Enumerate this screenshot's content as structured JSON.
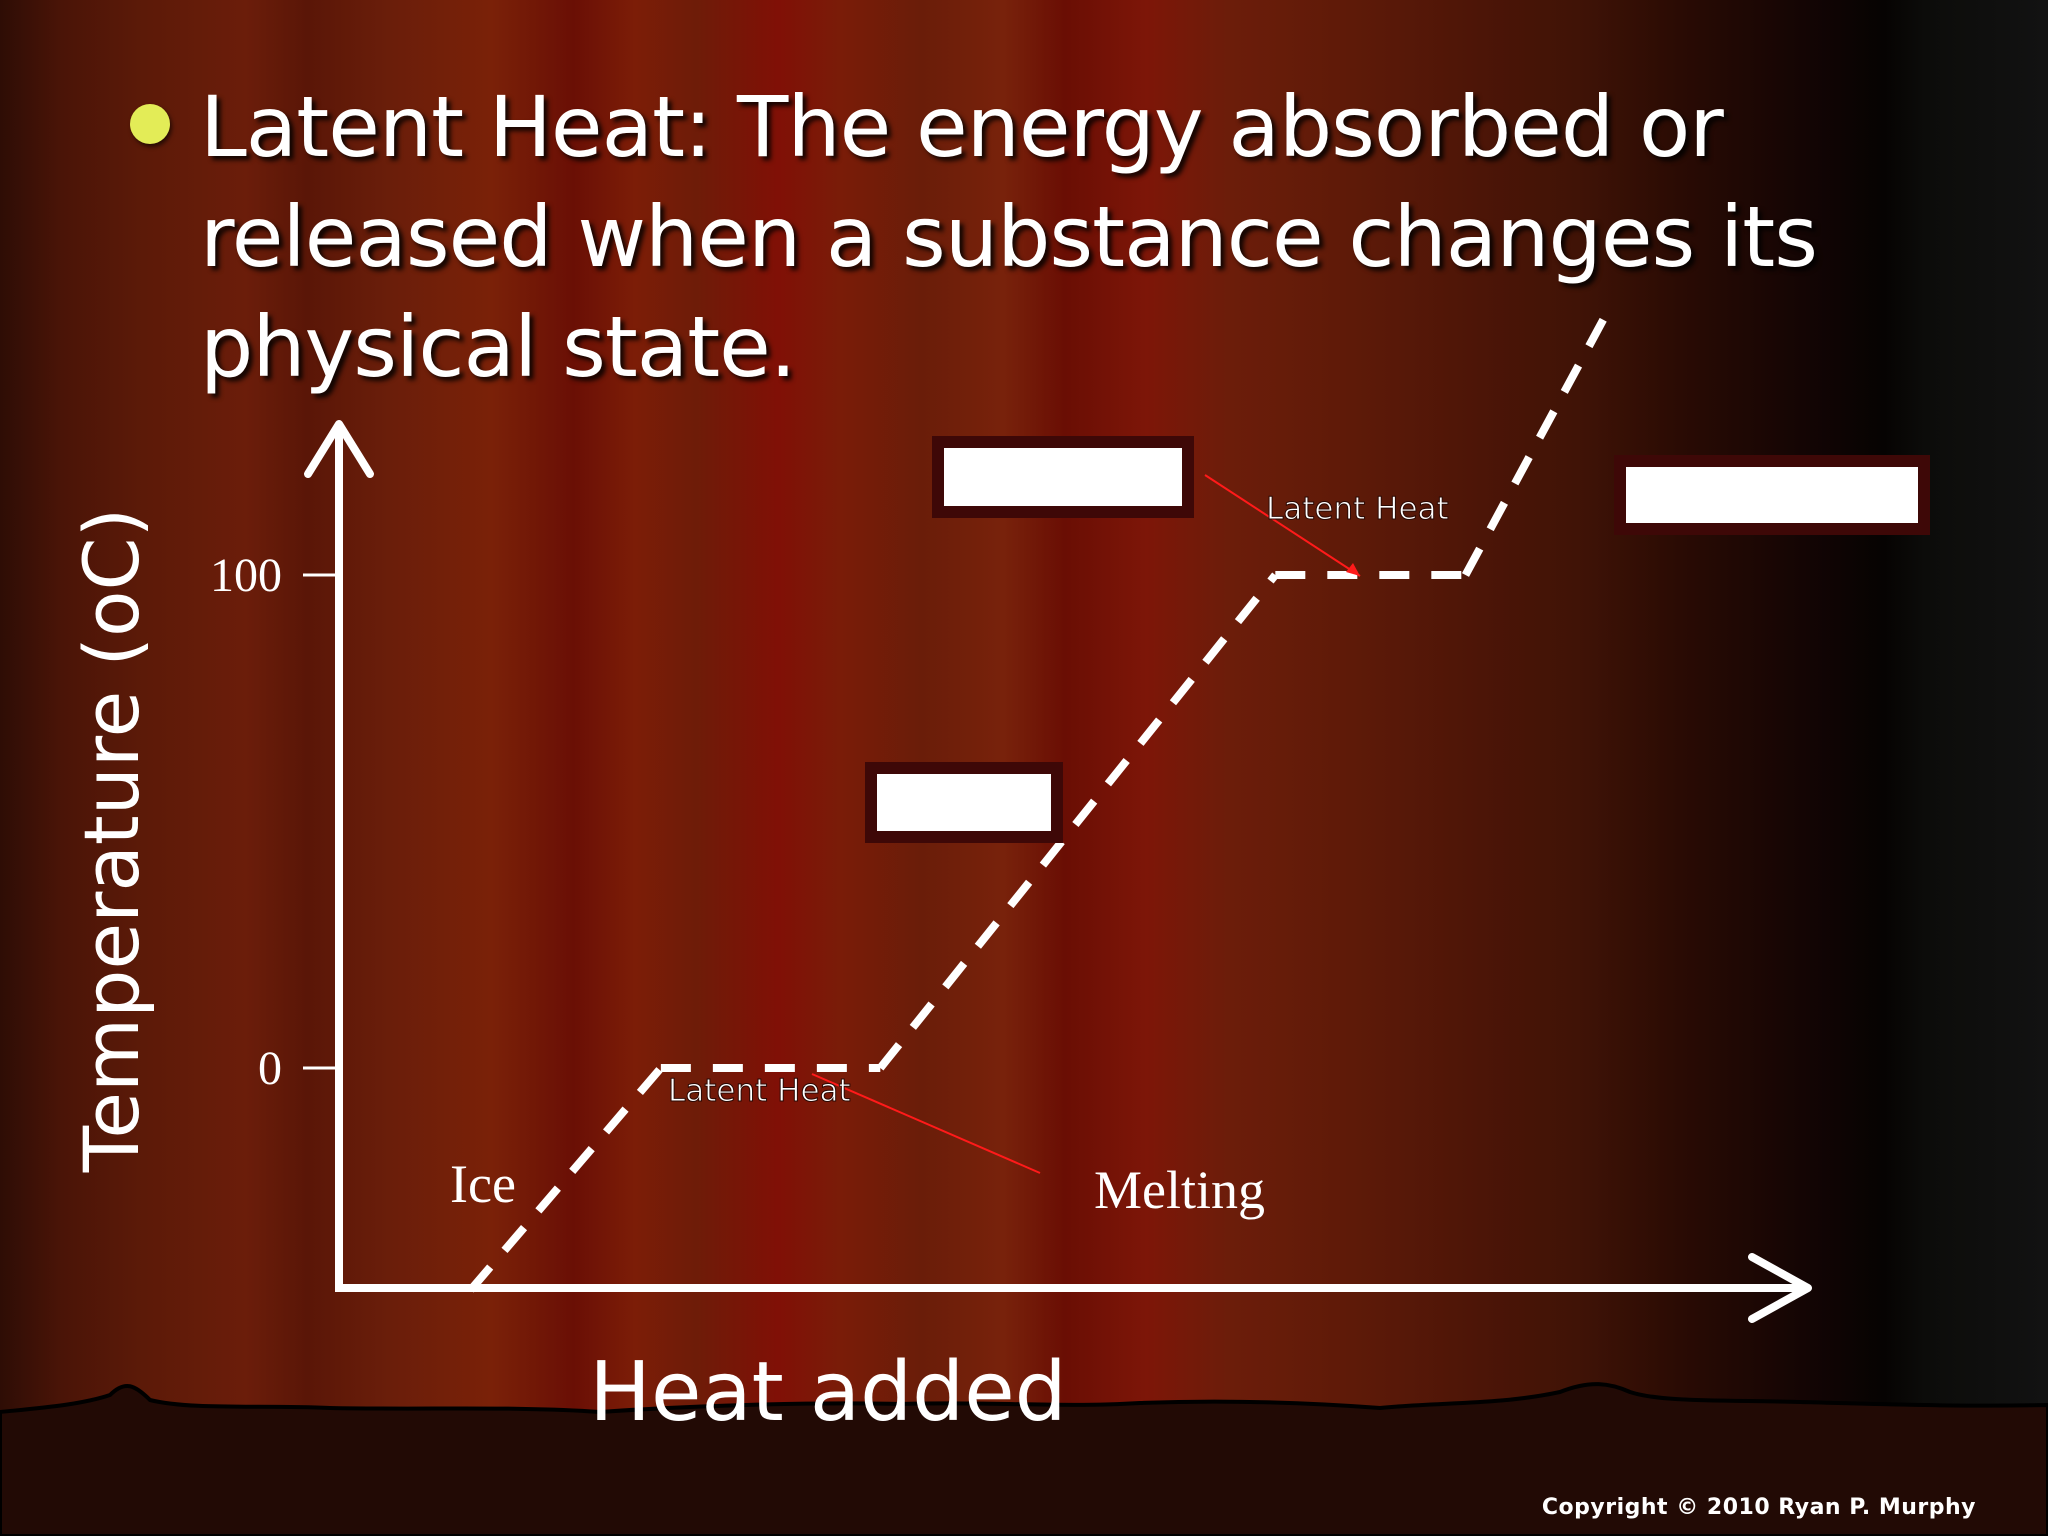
{
  "slide": {
    "heading": "Latent Heat: The energy absorbed or released when a substance changes its physical state.",
    "copyright": "Copyright © 2010 Ryan P. Murphy"
  },
  "colors": {
    "bullet": "#e3ec57",
    "text": "#ffffff",
    "pointer": "#ff1a1a",
    "blank_box_border": "#3e0807",
    "blank_box_fill": "#ffffff"
  },
  "labels": {
    "ice": "Ice",
    "melting": "Melting",
    "latent_heat_melting": "Latent Heat",
    "latent_heat_boiling": "Latent Heat"
  },
  "answer_boxes": [
    {
      "id": "answer-box-water",
      "filled": false
    },
    {
      "id": "answer-box-boiling",
      "filled": false
    },
    {
      "id": "answer-box-steam",
      "filled": false
    }
  ],
  "chart_data": {
    "type": "line",
    "xlabel": "Heat added",
    "ylabel": "Temperature (oC)",
    "x_ticks": [],
    "y_ticks": [
      0,
      100
    ],
    "ylim": [
      -45,
      140
    ],
    "xlim": [
      0,
      100
    ],
    "grid": false,
    "series": [
      {
        "style": "dashed",
        "x": [
          9,
          22,
          37,
          64,
          77,
          87
        ],
        "y": [
          -45,
          0,
          0,
          100,
          100,
          155
        ]
      }
    ]
  }
}
